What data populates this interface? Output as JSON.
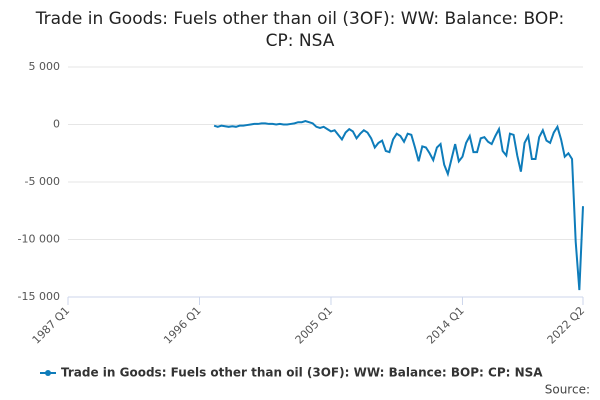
{
  "chart_data": {
    "type": "line",
    "title": "Trade in Goods: Fuels other than oil (3OF): WW: Balance: BOP: CP: NSA",
    "source": "Source:",
    "categories": [
      "1987 Q1",
      null,
      null,
      null,
      null,
      null,
      null,
      null,
      null,
      null,
      null,
      null,
      null,
      null,
      null,
      null,
      null,
      null,
      null,
      null,
      null,
      null,
      null,
      null,
      null,
      null,
      null,
      null,
      null,
      null,
      null,
      null,
      null,
      null,
      null,
      null,
      "1996 Q1",
      null,
      null,
      null,
      null,
      null,
      null,
      null,
      null,
      null,
      null,
      null,
      null,
      null,
      null,
      null,
      null,
      null,
      null,
      null,
      null,
      null,
      null,
      null,
      null,
      null,
      null,
      null,
      null,
      null,
      null,
      null,
      null,
      null,
      null,
      null,
      "2005 Q1",
      null,
      null,
      null,
      null,
      null,
      null,
      null,
      null,
      null,
      null,
      null,
      null,
      null,
      null,
      null,
      null,
      null,
      null,
      null,
      null,
      null,
      null,
      null,
      null,
      null,
      null,
      null,
      null,
      null,
      null,
      null,
      null,
      null,
      null,
      null,
      "2014 Q1",
      null,
      null,
      null,
      null,
      null,
      null,
      null,
      null,
      null,
      null,
      null,
      null,
      null,
      null,
      null,
      null,
      null,
      null,
      null,
      null,
      null,
      null,
      null,
      null,
      null,
      null,
      null,
      null,
      null,
      null,
      null,
      null,
      "2022 Q2"
    ],
    "series": [
      {
        "name": "Trade in Goods: Fuels other than oil (3OF): WW: Balance: BOP: CP: NSA",
        "color": "#0e7cba",
        "values": [
          null,
          null,
          null,
          null,
          null,
          null,
          null,
          null,
          null,
          null,
          null,
          null,
          null,
          null,
          null,
          null,
          null,
          null,
          null,
          null,
          null,
          null,
          null,
          null,
          null,
          null,
          null,
          null,
          null,
          null,
          null,
          null,
          null,
          null,
          null,
          null,
          null,
          null,
          null,
          null,
          -100,
          -200,
          -100,
          -150,
          -200,
          -150,
          -200,
          -100,
          -100,
          -50,
          0,
          50,
          50,
          100,
          100,
          50,
          50,
          0,
          50,
          0,
          0,
          50,
          100,
          200,
          200,
          300,
          200,
          100,
          -200,
          -300,
          -200,
          -400,
          -600,
          -500,
          -900,
          -1300,
          -700,
          -400,
          -600,
          -1200,
          -800,
          -500,
          -700,
          -1200,
          -2000,
          -1600,
          -1400,
          -2300,
          -2400,
          -1300,
          -800,
          -1000,
          -1500,
          -800,
          -900,
          -2000,
          -3200,
          -1900,
          -2000,
          -2500,
          -3100,
          -2000,
          -1700,
          -3500,
          -4300,
          -3000,
          -1700,
          -3200,
          -2800,
          -1600,
          -1000,
          -2400,
          -2400,
          -1200,
          -1100,
          -1500,
          -1700,
          -1000,
          -400,
          -2300,
          -2700,
          -800,
          -900,
          -2700,
          -4100,
          -1600,
          -1000,
          -3000,
          -3000,
          -1100,
          -500,
          -1400,
          -1600,
          -700,
          -200,
          -1300,
          -2800,
          -2500,
          -3000,
          -10200,
          -14400,
          -7100
        ]
      }
    ],
    "ylim": [
      -15000,
      5000
    ],
    "yticks": [
      {
        "value": -15000,
        "label": "-15 000"
      },
      {
        "value": -10000,
        "label": "-10 000"
      },
      {
        "value": -5000,
        "label": "-5 000"
      },
      0,
      {
        "value": 5000,
        "label": "5 000"
      }
    ],
    "grid": true
  }
}
